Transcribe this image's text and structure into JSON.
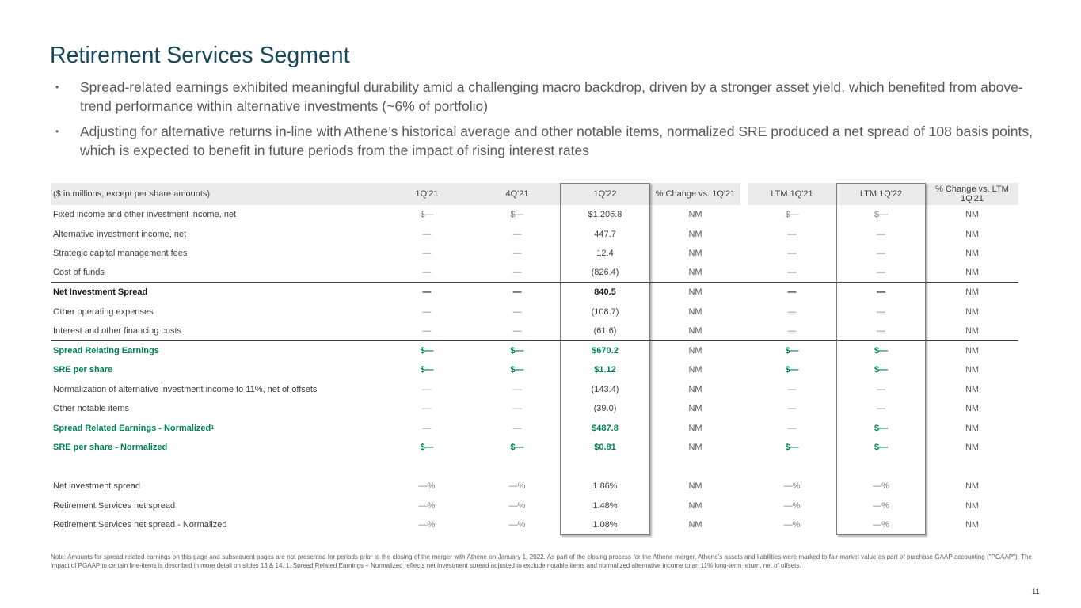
{
  "slide": {
    "title": "Retirement Services Segment",
    "bullet_marker": "•",
    "bullets": [
      "Spread-related earnings exhibited meaningful durability amid a challenging macro backdrop, driven by a stronger asset yield, which benefited from above-trend performance within alternative investments (~6% of portfolio)",
      "Adjusting for alternative returns in-line with Athene’s historical average and other notable items, normalized SRE produced a net spread of 108 basis points, which is expected to benefit in future periods from the impact of rising interest rates"
    ],
    "footnote": "Note: Amounts for spread related earnings on this page and subsequent pages are not presented for periods prior to the closing of the merger with Athene on January 1, 2022. As part of the closing process for the Athene merger, Athene’s assets and liabilities were marked to fair market value as part of purchase GAAP accounting (\"PGAAP\"). The impact of PGAAP to certain line-items is described in more detail on slides 13 & 14. 1. Spread Related Earnings – Normalized reflects net investment spread adjusted to exclude notable items and normalized alternative income to an 11% long-term return, net of offsets.",
    "page_number": "11"
  },
  "colors": {
    "title_teal": "#17495C",
    "body_gray": "#595959",
    "table_dark": "#404040",
    "bold_black": "#1A1A1A",
    "green": "#008151",
    "dash_gray": "#7F7F7F",
    "header_bg": "#EBEBEB",
    "box_border": "#808080"
  },
  "table": {
    "corner_label": "($ in millions, except per share amounts)",
    "columns": [
      "1Q'21",
      "4Q'21",
      "1Q'22",
      "% Change vs. 1Q'21",
      "LTM 1Q'21",
      "LTM 1Q'22",
      "% Change vs. LTM 1Q'21"
    ],
    "rows": [
      {
        "label": "Fixed income and other investment income, net",
        "style": "normal",
        "cells": [
          [
            "$—",
            "dash"
          ],
          [
            "$—",
            "dash"
          ],
          [
            "$1,206.8",
            "num"
          ],
          [
            "NM",
            "nm"
          ],
          [
            "$—",
            "dash"
          ],
          [
            "$—",
            "dash"
          ],
          [
            "NM",
            "nm"
          ]
        ]
      },
      {
        "label": "Alternative investment income, net",
        "style": "normal",
        "cells": [
          [
            "—",
            "dash"
          ],
          [
            "—",
            "dash"
          ],
          [
            "447.7",
            "num"
          ],
          [
            "NM",
            "nm"
          ],
          [
            "—",
            "dash"
          ],
          [
            "—",
            "dash"
          ],
          [
            "NM",
            "nm"
          ]
        ]
      },
      {
        "label": "Strategic capital management fees",
        "style": "normal",
        "cells": [
          [
            "—",
            "dash"
          ],
          [
            "—",
            "dash"
          ],
          [
            "12.4",
            "num"
          ],
          [
            "NM",
            "nm"
          ],
          [
            "—",
            "dash"
          ],
          [
            "—",
            "dash"
          ],
          [
            "NM",
            "nm"
          ]
        ]
      },
      {
        "label": "Cost of funds",
        "style": "normal",
        "divider": true,
        "cells": [
          [
            "—",
            "dash"
          ],
          [
            "—",
            "dash"
          ],
          [
            "(826.4)",
            "num"
          ],
          [
            "NM",
            "nm"
          ],
          [
            "—",
            "dash"
          ],
          [
            "—",
            "dash"
          ],
          [
            "NM",
            "nm"
          ]
        ]
      },
      {
        "label": "Net Investment Spread",
        "style": "bold",
        "cells": [
          [
            "—",
            "bdash"
          ],
          [
            "—",
            "bdash"
          ],
          [
            "840.5",
            "bnum"
          ],
          [
            "NM",
            "nm"
          ],
          [
            "—",
            "bdash"
          ],
          [
            "—",
            "bdash"
          ],
          [
            "NM",
            "nm"
          ]
        ]
      },
      {
        "label": "Other operating expenses",
        "style": "normal",
        "cells": [
          [
            "—",
            "dash"
          ],
          [
            "—",
            "dash"
          ],
          [
            "(108.7)",
            "num"
          ],
          [
            "NM",
            "nm"
          ],
          [
            "—",
            "dash"
          ],
          [
            "—",
            "dash"
          ],
          [
            "NM",
            "nm"
          ]
        ]
      },
      {
        "label": "Interest and other financing costs",
        "style": "normal",
        "divider": true,
        "cells": [
          [
            "—",
            "dash"
          ],
          [
            "—",
            "dash"
          ],
          [
            "(61.6)",
            "num"
          ],
          [
            "NM",
            "nm"
          ],
          [
            "—",
            "dash"
          ],
          [
            "—",
            "dash"
          ],
          [
            "NM",
            "nm"
          ]
        ]
      },
      {
        "label": "Spread Relating Earnings",
        "style": "green",
        "cells": [
          [
            "$—",
            "green"
          ],
          [
            "$—",
            "green"
          ],
          [
            "$670.2",
            "green"
          ],
          [
            "NM",
            "nm"
          ],
          [
            "$—",
            "green"
          ],
          [
            "$—",
            "green"
          ],
          [
            "NM",
            "nm"
          ]
        ]
      },
      {
        "label": "SRE per share",
        "style": "green",
        "cells": [
          [
            "$—",
            "green"
          ],
          [
            "$—",
            "green"
          ],
          [
            "$1.12",
            "green"
          ],
          [
            "NM",
            "nm"
          ],
          [
            "$—",
            "green"
          ],
          [
            "$—",
            "green"
          ],
          [
            "NM",
            "nm"
          ]
        ]
      },
      {
        "label": "Normalization of alternative investment income to 11%, net of offsets",
        "style": "normal",
        "cells": [
          [
            "—",
            "dash"
          ],
          [
            "—",
            "dash"
          ],
          [
            "(143.4)",
            "num"
          ],
          [
            "NM",
            "nm"
          ],
          [
            "—",
            "dash"
          ],
          [
            "—",
            "dash"
          ],
          [
            "NM",
            "nm"
          ]
        ]
      },
      {
        "label": "Other notable items",
        "style": "normal",
        "cells": [
          [
            "—",
            "dash"
          ],
          [
            "—",
            "dash"
          ],
          [
            "(39.0)",
            "num"
          ],
          [
            "NM",
            "nm"
          ],
          [
            "—",
            "dash"
          ],
          [
            "—",
            "dash"
          ],
          [
            "NM",
            "nm"
          ]
        ]
      },
      {
        "label": "Spread Related Earnings - Normalized",
        "sup": "1",
        "style": "green",
        "cells": [
          [
            "—",
            "dash"
          ],
          [
            "—",
            "dash"
          ],
          [
            "$487.8",
            "green"
          ],
          [
            "NM",
            "nm"
          ],
          [
            "—",
            "dash"
          ],
          [
            "$—",
            "green"
          ],
          [
            "NM",
            "nm"
          ]
        ]
      },
      {
        "label": "SRE per share - Normalized",
        "style": "green",
        "cells": [
          [
            "$—",
            "green"
          ],
          [
            "$—",
            "green"
          ],
          [
            "$0.81",
            "green"
          ],
          [
            "NM",
            "nm"
          ],
          [
            "$—",
            "green"
          ],
          [
            "$—",
            "green"
          ],
          [
            "NM",
            "nm"
          ]
        ]
      },
      {
        "spacer": true
      },
      {
        "label": "Net investment spread",
        "style": "normal",
        "cells": [
          [
            "—%",
            "dash"
          ],
          [
            "—%",
            "dash"
          ],
          [
            "1.86%",
            "num"
          ],
          [
            "NM",
            "nm"
          ],
          [
            "—%",
            "dash"
          ],
          [
            "—%",
            "dash"
          ],
          [
            "NM",
            "nm"
          ]
        ]
      },
      {
        "label": "Retirement Services net spread",
        "style": "normal",
        "cells": [
          [
            "—%",
            "dash"
          ],
          [
            "—%",
            "dash"
          ],
          [
            "1.48%",
            "num"
          ],
          [
            "NM",
            "nm"
          ],
          [
            "—%",
            "dash"
          ],
          [
            "—%",
            "dash"
          ],
          [
            "NM",
            "nm"
          ]
        ]
      },
      {
        "label": "Retirement Services net spread - Normalized",
        "style": "normal",
        "cells": [
          [
            "—%",
            "dash"
          ],
          [
            "—%",
            "dash"
          ],
          [
            "1.08%",
            "num"
          ],
          [
            "NM",
            "nm"
          ],
          [
            "—%",
            "dash"
          ],
          [
            "—%",
            "dash"
          ],
          [
            "NM",
            "nm"
          ]
        ]
      }
    ]
  }
}
